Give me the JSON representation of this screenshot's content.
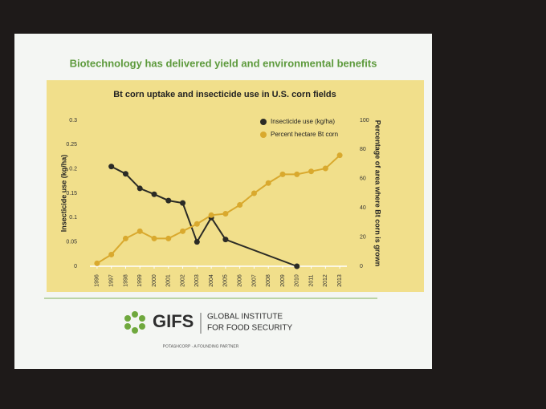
{
  "slide_title": "Biotechnology has delivered yield and environmental benefits",
  "chart_data": {
    "type": "line",
    "title": "Bt corn uptake and insecticide use in U.S. corn fields",
    "y_label": "Insecticide use (kg/ha)",
    "y2_label": "Percentage of area where Bt corn is grown",
    "xlim": [
      1995.5,
      2013.5
    ],
    "xticks": [
      1996,
      1997,
      1998,
      1999,
      2000,
      2001,
      2002,
      2003,
      2004,
      2005,
      2006,
      2007,
      2008,
      2009,
      2010,
      2011,
      2012,
      2013
    ],
    "ylim": [
      0,
      0.3
    ],
    "yticks": [
      0,
      0.05,
      0.1,
      0.15,
      0.2,
      0.25,
      0.3
    ],
    "y2lim": [
      0,
      100
    ],
    "y2ticks": [
      0,
      20,
      40,
      60,
      80,
      100
    ],
    "legend": "top-right",
    "series": [
      {
        "name": "Insecticide use (kg/ha)",
        "color": "#2b2b26",
        "x": [
          1997,
          1998,
          1999,
          2000,
          2001,
          2002,
          2003,
          2004,
          2005,
          2010
        ],
        "values": [
          0.205,
          0.19,
          0.16,
          0.148,
          0.135,
          0.13,
          0.05,
          0.1,
          0.055,
          0
        ]
      },
      {
        "name": "Percent hectare Bt corn",
        "color": "#d9a92e",
        "axis": "y2",
        "x": [
          1996,
          1997,
          1998,
          1999,
          2000,
          2001,
          2002,
          2003,
          2004,
          2005,
          2006,
          2007,
          2008,
          2009,
          2010,
          2011,
          2012,
          2013
        ],
        "values": [
          2,
          8,
          19,
          24,
          19,
          19,
          24,
          29,
          35,
          36,
          42,
          50,
          57,
          63,
          63,
          65,
          67,
          76
        ]
      }
    ]
  },
  "logo": {
    "name": "GIFS",
    "line1": "GLOBAL INSTITUTE",
    "line2": "FOR FOOD SECURITY",
    "partner": "POTASHCORP - A FOUNDING PARTNER"
  }
}
